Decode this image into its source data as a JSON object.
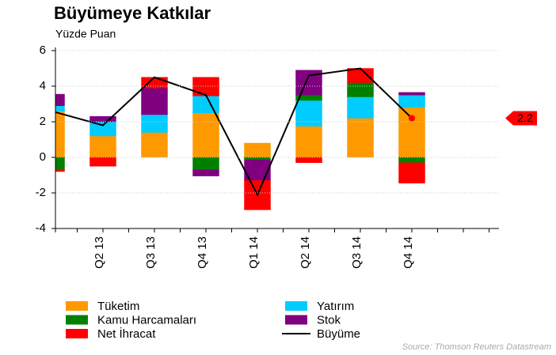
{
  "chart_data": {
    "type": "bar",
    "stacked": true,
    "title": "Büyümeye Katkılar",
    "subtitle": "Yüzde Puan",
    "source": "Source: Thomson Reuters Datastream",
    "categories": [
      null,
      "Q2 13",
      "Q3 13",
      "Q4 13",
      "Q1 14",
      "Q2 14",
      "Q3 14",
      "Q4 14",
      null
    ],
    "ylim": [
      -4,
      6
    ],
    "yticks": [
      -4,
      -2,
      0,
      2,
      4,
      6
    ],
    "grid": true,
    "series": [
      {
        "name": "Tüketim",
        "color": "#ff9900",
        "values": [
          2.6,
          1.2,
          1.4,
          2.5,
          0.8,
          1.75,
          2.2,
          2.8,
          null
        ]
      },
      {
        "name": "Yatırım",
        "color": "#00ccff",
        "values": [
          0.3,
          0.8,
          1.0,
          0.95,
          0,
          1.45,
          1.2,
          0.7,
          null
        ]
      },
      {
        "name": "Kamu Harcamaları",
        "color": "#008000",
        "values": [
          -0.7,
          0,
          0,
          -0.7,
          -0.15,
          0.3,
          0.8,
          -0.3,
          null
        ]
      },
      {
        "name": "Stok",
        "color": "#800080",
        "values": [
          0.65,
          0.3,
          1.5,
          -0.35,
          -1.15,
          1.4,
          0,
          0.15,
          null
        ]
      },
      {
        "name": "Net İhracat",
        "color": "#ff0000",
        "values": [
          -0.1,
          -0.5,
          0.6,
          1.05,
          -1.65,
          -0.3,
          0.8,
          -1.15,
          null
        ]
      },
      {
        "name": "Büyüme",
        "type": "line",
        "color": "#000000",
        "values": [
          2.6,
          1.8,
          4.5,
          3.5,
          -2.1,
          4.6,
          5.0,
          2.2,
          null
        ],
        "value_labels": [
          null,
          null,
          null,
          null,
          null,
          null,
          null,
          "2.2",
          null
        ]
      }
    ]
  }
}
